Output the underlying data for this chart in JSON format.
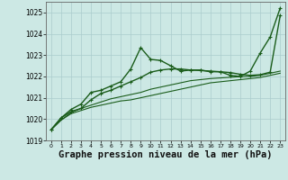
{
  "bg_color": "#cce8e4",
  "grid_color": "#aacccc",
  "line_color": "#1a5c1a",
  "xlabel": "Graphe pression niveau de la mer (hPa)",
  "xlabel_fontsize": 7.5,
  "ylim": [
    1019.0,
    1025.5
  ],
  "xlim": [
    -0.5,
    23.5
  ],
  "yticks": [
    1019,
    1020,
    1021,
    1022,
    1023,
    1024,
    1025
  ],
  "xticks": [
    0,
    1,
    2,
    3,
    4,
    5,
    6,
    7,
    8,
    9,
    10,
    11,
    12,
    13,
    14,
    15,
    16,
    17,
    18,
    19,
    20,
    21,
    22,
    23
  ],
  "series": [
    {
      "x": [
        0,
        1,
        2,
        3,
        4,
        5,
        6,
        7,
        8,
        9,
        10,
        11,
        12,
        13,
        14,
        15,
        16,
        17,
        18,
        19,
        20,
        21,
        22,
        23
      ],
      "y": [
        1019.5,
        1019.95,
        1020.25,
        1020.4,
        1020.55,
        1020.65,
        1020.75,
        1020.85,
        1020.9,
        1021.0,
        1021.1,
        1021.2,
        1021.3,
        1021.4,
        1021.5,
        1021.6,
        1021.7,
        1021.75,
        1021.8,
        1021.85,
        1021.9,
        1021.95,
        1022.05,
        1022.15
      ],
      "color": "#1a5c1a",
      "lw": 0.8,
      "marker": null
    },
    {
      "x": [
        0,
        1,
        2,
        3,
        4,
        5,
        6,
        7,
        8,
        9,
        10,
        11,
        12,
        13,
        14,
        15,
        16,
        17,
        18,
        19,
        20,
        21,
        22,
        23
      ],
      "y": [
        1019.5,
        1019.95,
        1020.3,
        1020.5,
        1020.65,
        1020.8,
        1020.95,
        1021.05,
        1021.15,
        1021.25,
        1021.4,
        1021.5,
        1021.6,
        1021.7,
        1021.8,
        1021.85,
        1021.9,
        1021.93,
        1021.96,
        1021.99,
        1022.0,
        1022.05,
        1022.15,
        1022.25
      ],
      "color": "#1a5c1a",
      "lw": 0.8,
      "marker": null
    },
    {
      "x": [
        0,
        1,
        2,
        3,
        4,
        5,
        6,
        7,
        8,
        9,
        10,
        11,
        12,
        13,
        14,
        15,
        16,
        17,
        18,
        19,
        20,
        21,
        22,
        23
      ],
      "y": [
        1019.5,
        1020.05,
        1020.35,
        1020.5,
        1020.9,
        1021.2,
        1021.35,
        1021.55,
        1021.75,
        1021.95,
        1022.2,
        1022.3,
        1022.35,
        1022.35,
        1022.3,
        1022.28,
        1022.25,
        1022.22,
        1022.18,
        1022.1,
        1022.05,
        1022.08,
        1022.2,
        1024.85
      ],
      "color": "#1a5c1a",
      "lw": 1.0,
      "marker": "+",
      "markersize": 3.5
    },
    {
      "x": [
        0,
        1,
        2,
        3,
        4,
        5,
        6,
        7,
        8,
        9,
        10,
        11,
        12,
        13,
        14,
        15,
        16,
        17,
        18,
        19,
        20,
        21,
        22,
        23
      ],
      "y": [
        1019.5,
        1020.05,
        1020.45,
        1020.7,
        1021.25,
        1021.35,
        1021.55,
        1021.75,
        1022.35,
        1023.35,
        1022.8,
        1022.75,
        1022.5,
        1022.25,
        1022.3,
        1022.3,
        1022.22,
        1022.22,
        1022.05,
        1022.0,
        1022.25,
        1023.1,
        1023.85,
        1025.2
      ],
      "color": "#1a5c1a",
      "lw": 1.0,
      "marker": "+",
      "markersize": 3.5
    }
  ]
}
